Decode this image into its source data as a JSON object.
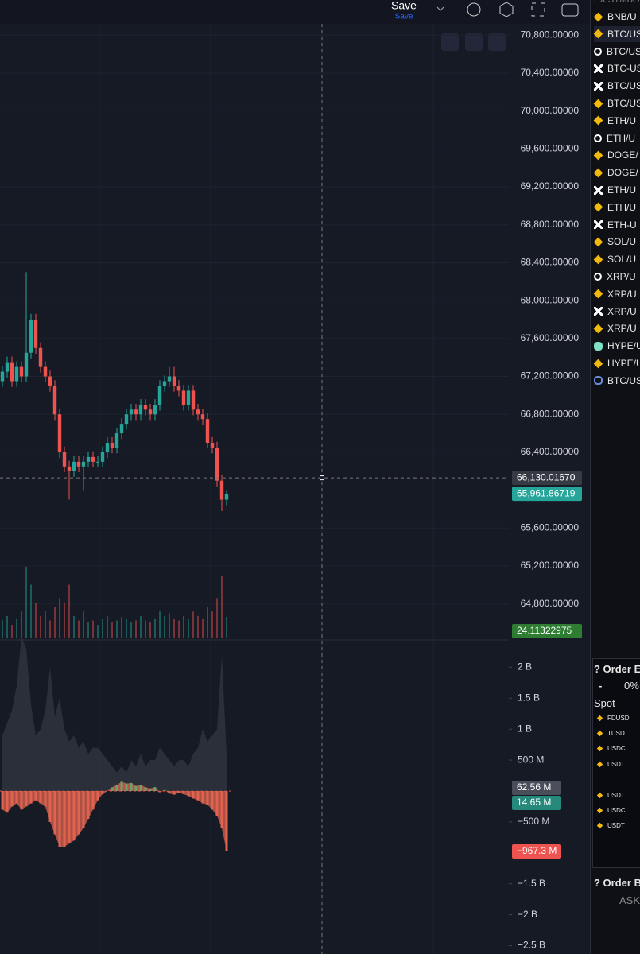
{
  "toolbar": {
    "save": "Save",
    "save_sub": "Save"
  },
  "chart_data": {
    "type": "candlestick",
    "candles": [
      [
        67150,
        67310,
        67090,
        67250
      ],
      [
        67250,
        67410,
        67190,
        67350
      ],
      [
        67350,
        67410,
        67090,
        67150
      ],
      [
        67150,
        67360,
        67090,
        67300
      ],
      [
        67300,
        67360,
        67140,
        67200
      ],
      [
        67200,
        68300,
        67140,
        67450
      ],
      [
        67450,
        67860,
        67390,
        67800
      ],
      [
        67800,
        67860,
        67440,
        67500
      ],
      [
        67500,
        67560,
        67240,
        67300
      ],
      [
        67300,
        67360,
        67140,
        67200
      ],
      [
        67200,
        67260,
        67040,
        67100
      ],
      [
        67100,
        67160,
        66740,
        66800
      ],
      [
        66800,
        66860,
        66340,
        66400
      ],
      [
        66400,
        66460,
        66190,
        66250
      ],
      [
        66250,
        66310,
        65900,
        66200
      ],
      [
        66200,
        66360,
        66140,
        66300
      ],
      [
        66300,
        66360,
        66190,
        66250
      ],
      [
        66250,
        66360,
        66000,
        66300
      ],
      [
        66300,
        66410,
        66240,
        66350
      ],
      [
        66350,
        66410,
        66240,
        66300
      ],
      [
        66300,
        66360,
        66240,
        66300
      ],
      [
        66300,
        66460,
        66240,
        66400
      ],
      [
        66400,
        66560,
        66340,
        66500
      ],
      [
        66500,
        66560,
        66390,
        66450
      ],
      [
        66450,
        66660,
        66390,
        66600
      ],
      [
        66600,
        66760,
        66540,
        66700
      ],
      [
        66700,
        66860,
        66640,
        66800
      ],
      [
        66800,
        66910,
        66740,
        66850
      ],
      [
        66850,
        66910,
        66740,
        66800
      ],
      [
        66800,
        66960,
        66740,
        66900
      ],
      [
        66900,
        66960,
        66790,
        66850
      ],
      [
        66850,
        66910,
        66740,
        66800
      ],
      [
        66800,
        66960,
        66740,
        66900
      ],
      [
        66900,
        67160,
        66840,
        67100
      ],
      [
        67100,
        67210,
        67040,
        67150
      ],
      [
        67150,
        67300,
        67090,
        67200
      ],
      [
        67200,
        67300,
        67040,
        67100
      ],
      [
        67100,
        67160,
        66990,
        67050
      ],
      [
        67050,
        67110,
        66840,
        66900
      ],
      [
        66900,
        67110,
        66840,
        67050
      ],
      [
        67050,
        67110,
        66790,
        66850
      ],
      [
        66850,
        66910,
        66740,
        66800
      ],
      [
        66800,
        66860,
        66690,
        66750
      ],
      [
        66750,
        66810,
        66440,
        66500
      ],
      [
        66500,
        66560,
        66390,
        66450
      ],
      [
        66450,
        66510,
        66040,
        66100
      ],
      [
        66100,
        66160,
        65780,
        65900
      ],
      [
        65900,
        66000,
        65840,
        65962
      ]
    ],
    "volumes": [
      20,
      25,
      15,
      22,
      30,
      80,
      60,
      40,
      25,
      30,
      20,
      35,
      45,
      40,
      60,
      25,
      20,
      30,
      18,
      20,
      15,
      22,
      25,
      18,
      20,
      24,
      22,
      18,
      20,
      25,
      20,
      18,
      22,
      30,
      25,
      28,
      22,
      20,
      25,
      22,
      30,
      25,
      22,
      35,
      30,
      45,
      70,
      24.11
    ],
    "ylim": [
      64420,
      70920
    ],
    "yticks": [
      {
        "value": 70800,
        "label": "70,800.00000"
      },
      {
        "value": 70400,
        "label": "70,400.00000"
      },
      {
        "value": 70000,
        "label": "70,000.00000"
      },
      {
        "value": 69600,
        "label": "69,600.00000"
      },
      {
        "value": 69200,
        "label": "69,200.00000"
      },
      {
        "value": 68800,
        "label": "68,800.00000"
      },
      {
        "value": 68400,
        "label": "68,400.00000"
      },
      {
        "value": 68000,
        "label": "68,000.00000"
      },
      {
        "value": 67600,
        "label": "67,600.00000"
      },
      {
        "value": 67200,
        "label": "67,200.00000"
      },
      {
        "value": 66800,
        "label": "66,800.00000"
      },
      {
        "value": 66400,
        "label": "66,400.00000"
      },
      {
        "value": 65600,
        "label": "65,600.00000"
      },
      {
        "value": 65200,
        "label": "65,200.00000"
      },
      {
        "value": 64800,
        "label": "64,800.00000"
      }
    ],
    "crosshair": {
      "value": 66130.0167,
      "label": "66,130.01670"
    },
    "last_price": {
      "value": 65961.86719,
      "label": "65,961.86719"
    },
    "volume_label": {
      "value": 24.11322975,
      "label": "24.11322975"
    },
    "up_color": "#26a69a",
    "down_color": "#ef5350"
  },
  "indicator_data": {
    "type": "area",
    "series": [
      {
        "color": "#3a3d48",
        "values": [
          900,
          1100,
          1300,
          1700,
          2500,
          2300,
          1400,
          900,
          1000,
          1300,
          2000,
          1200,
          1500,
          1000,
          800,
          900,
          700,
          800,
          600,
          700,
          700,
          600,
          500,
          400,
          300,
          400,
          300,
          500,
          400,
          600,
          400,
          500,
          500,
          700,
          600,
          500,
          400,
          500,
          500,
          400,
          600,
          700,
          1000,
          800,
          900,
          1000,
          2200,
          600
        ]
      },
      {
        "color": "#e0634f",
        "up_color": "#6ba36b",
        "values": [
          -300,
          -350,
          -250,
          -200,
          -300,
          -250,
          -200,
          -150,
          -200,
          -250,
          -500,
          -700,
          -900,
          -900,
          -850,
          -800,
          -700,
          -600,
          -450,
          -300,
          -150,
          -50,
          0,
          60,
          100,
          150,
          120,
          130,
          80,
          100,
          60,
          40,
          62.56,
          -20,
          14.65,
          -40,
          -60,
          -30,
          -50,
          -80,
          -120,
          -150,
          -200,
          -220,
          -300,
          -400,
          -600,
          -967.3
        ]
      }
    ],
    "ylim": [
      -2635,
      2442
    ],
    "yticks": [
      {
        "value": 2000,
        "label": "2 B"
      },
      {
        "value": 1500,
        "label": "1.5 B"
      },
      {
        "value": 1000,
        "label": "1 B"
      },
      {
        "value": 500,
        "label": "500 M"
      },
      {
        "value": -500,
        "label": "−500 M"
      },
      {
        "value": -1500,
        "label": "−1.5 B"
      },
      {
        "value": -2000,
        "label": "−2 B"
      },
      {
        "value": -2500,
        "label": "−2.5 B"
      }
    ],
    "labels": [
      {
        "value": 62.56,
        "label": "62.56 M",
        "color": "#4a4e5a"
      },
      {
        "value": 14.65,
        "label": "14.65 M",
        "color": "#26897c"
      },
      {
        "value": -967.3,
        "label": "−967.3 M",
        "color": "#ef5350"
      }
    ]
  },
  "sidebar": {
    "header": "EX SYMBOL",
    "symbols": [
      "BNB/U",
      "BTC/US",
      "BTC/US",
      "BTC-US",
      "BTC/US",
      "BTC/US",
      "ETH/U",
      "ETH/U",
      "DOGE/",
      "DOGE/",
      "ETH/U",
      "ETH/U",
      "ETH-U",
      "SOL/U",
      "SOL/U",
      "XRP/U",
      "XRP/U",
      "XRP/U",
      "XRP/U",
      "HYPE/U",
      "HYPE/U",
      "BTC/US"
    ],
    "orderbook": {
      "title": "? Order E",
      "minus": "-",
      "pct": "0%",
      "tab": "Spot",
      "rows": [
        "FDUSD",
        "TUSD",
        "USDC",
        "USDT",
        "USDT",
        "USDC",
        "USDT"
      ]
    },
    "orderbook2": {
      "title": "? Order B",
      "ask": "ASK"
    }
  }
}
